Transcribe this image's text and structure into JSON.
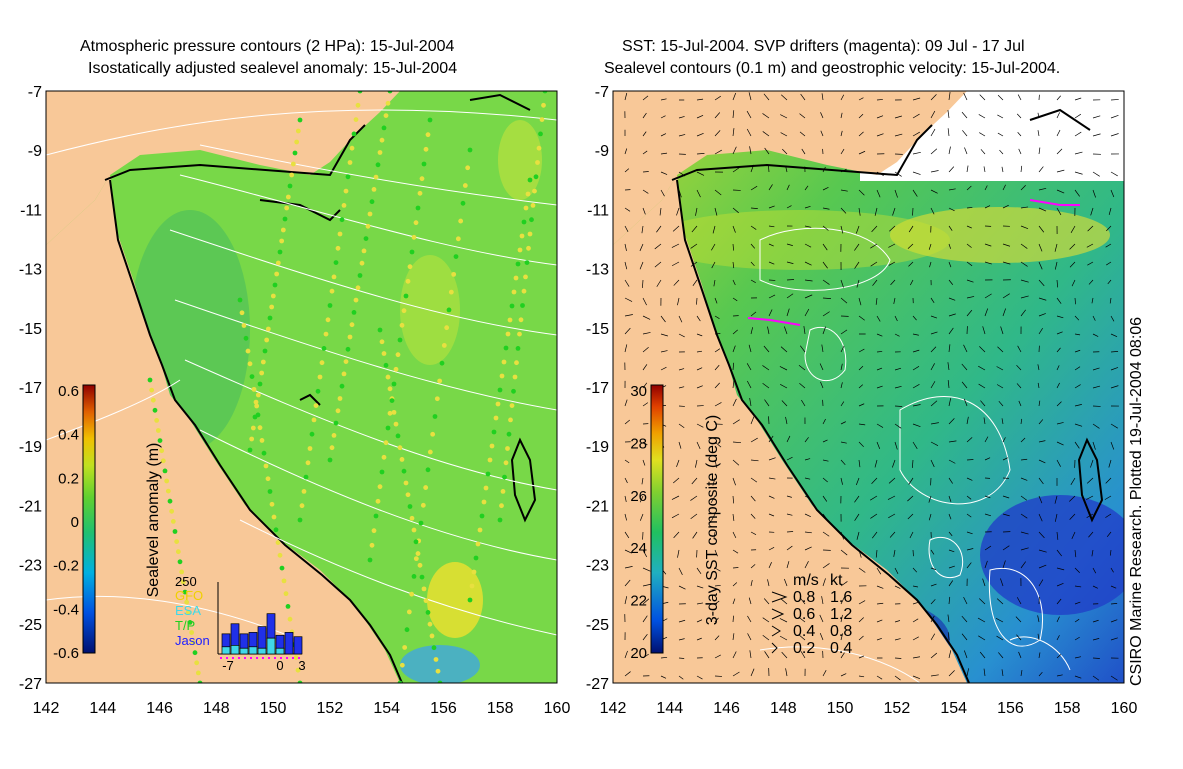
{
  "left_panel": {
    "title_line1": "Atmospheric pressure contours (2 HPa): 15-Jul-2004",
    "title_line2": "Isostatically adjusted sealevel anomaly: 15-Jul-2004",
    "colorbar": {
      "label": "Sealevel anomaly (m)",
      "ticks": [
        "0.6",
        "0.4",
        "0.2",
        "0",
        "-0.2",
        "-0.4",
        "-0.6"
      ]
    },
    "inset": {
      "ymax_label": "250",
      "legend": [
        {
          "name": "GFO",
          "color": "#f0d000"
        },
        {
          "name": "ESA",
          "color": "#40d8e8"
        },
        {
          "name": "T/P",
          "color": "#20d020"
        },
        {
          "name": "Jason",
          "color": "#2020ff"
        }
      ],
      "xticks": [
        "-7",
        "0",
        "3"
      ],
      "bars": [
        {
          "total": 70,
          "cyan": 25
        },
        {
          "total": 105,
          "cyan": 30
        },
        {
          "total": 70,
          "cyan": 20
        },
        {
          "total": 75,
          "cyan": 25
        },
        {
          "total": 95,
          "cyan": 20
        },
        {
          "total": 140,
          "cyan": 55
        },
        {
          "total": 65,
          "cyan": 20
        },
        {
          "total": 75,
          "cyan": 0
        },
        {
          "total": 60,
          "cyan": 0
        }
      ]
    }
  },
  "right_panel": {
    "title_line1": "SST: 15-Jul-2004. SVP drifters (magenta): 09 Jul - 17 Jul",
    "title_line2": "Sealevel contours (0.1 m) and geostrophic velocity: 15-Jul-2004.",
    "colorbar": {
      "label": "3-day SST composite (deg C)",
      "ticks": [
        "30",
        "28",
        "26",
        "24",
        "22",
        "20"
      ]
    },
    "velocity_key": {
      "header_ms": "m/s",
      "header_kt": "kt",
      "rows": [
        {
          "ms": "0.8",
          "kt": "1.6"
        },
        {
          "ms": "0.6",
          "kt": "1.2"
        },
        {
          "ms": "0.4",
          "kt": "0.8"
        },
        {
          "ms": "0.2",
          "kt": "0.4"
        }
      ]
    }
  },
  "axes": {
    "y_labels": [
      "-7",
      "-9",
      "-11",
      "-13",
      "-15",
      "-17",
      "-19",
      "-21",
      "-23",
      "-25",
      "-27"
    ],
    "x_labels": [
      "142",
      "144",
      "146",
      "148",
      "150",
      "152",
      "154",
      "156",
      "158",
      "160"
    ]
  },
  "side_label": "CSIRO Marine Research. Plotted 19-Jul-2004 08:06",
  "colors": {
    "land": "#f8c898",
    "sea_mid": "#70d848",
    "sea_dark": "#38b848",
    "cold": "#2040c0"
  }
}
